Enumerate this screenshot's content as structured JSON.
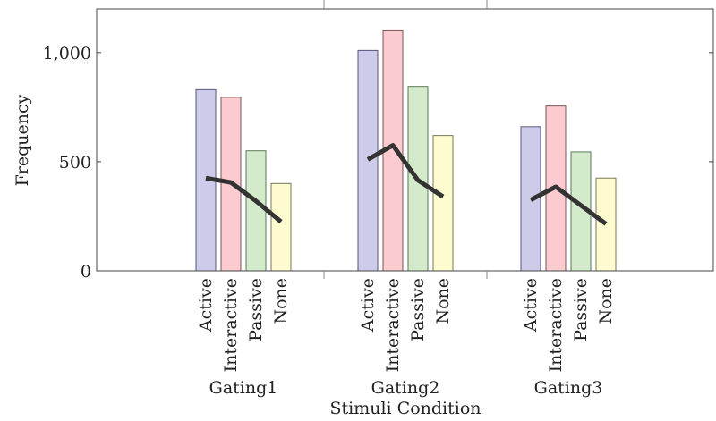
{
  "chart_data": {
    "type": "bar",
    "title": "",
    "xlabel": "Stimuli Condition",
    "ylabel": "Frequency",
    "ylim": [
      0,
      1200
    ],
    "yticks": [
      0,
      500,
      1000
    ],
    "ytick_labels": [
      "0",
      "500",
      "1,000"
    ],
    "groups": [
      "Gating1",
      "Gating2",
      "Gating3"
    ],
    "categories": [
      "Active",
      "Interactive",
      "Passive",
      "None"
    ],
    "category_colors": {
      "Active": {
        "fill": "#cdcbea",
        "stroke": "#55557a"
      },
      "Interactive": {
        "fill": "#fccbcf",
        "stroke": "#7a5558"
      },
      "Passive": {
        "fill": "#d4ebcb",
        "stroke": "#587a55"
      },
      "None": {
        "fill": "#fdfbcf",
        "stroke": "#7a7855"
      }
    },
    "series": [
      {
        "name": "Gating1",
        "values": [
          830,
          795,
          550,
          400
        ]
      },
      {
        "name": "Gating2",
        "values": [
          1010,
          1100,
          845,
          620
        ]
      },
      {
        "name": "Gating3",
        "values": [
          660,
          755,
          545,
          425
        ]
      }
    ],
    "line_series": [
      {
        "name": "Gating1",
        "values": [
          425,
          405,
          320,
          225
        ]
      },
      {
        "name": "Gating2",
        "values": [
          510,
          575,
          415,
          340
        ]
      },
      {
        "name": "Gating3",
        "values": [
          325,
          385,
          300,
          215
        ]
      }
    ],
    "line_color": "#333333"
  }
}
